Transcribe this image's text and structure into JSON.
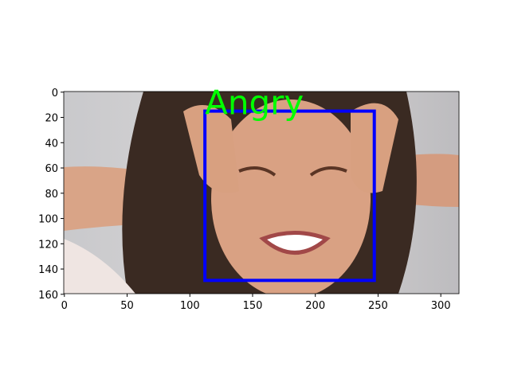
{
  "chart_data": {
    "type": "image",
    "xlim": [
      -0.5,
      314.5
    ],
    "ylim": [
      159.5,
      -0.5
    ],
    "xticks": [
      0,
      50,
      100,
      150,
      200,
      250,
      300
    ],
    "yticks": [
      0,
      20,
      40,
      60,
      80,
      100,
      120,
      140,
      160
    ],
    "box": {
      "label": "Angry",
      "x0": 112,
      "x1": 247,
      "y0": 15,
      "y1": 149,
      "color": "#0000ff",
      "label_color": "#00ff00"
    }
  }
}
